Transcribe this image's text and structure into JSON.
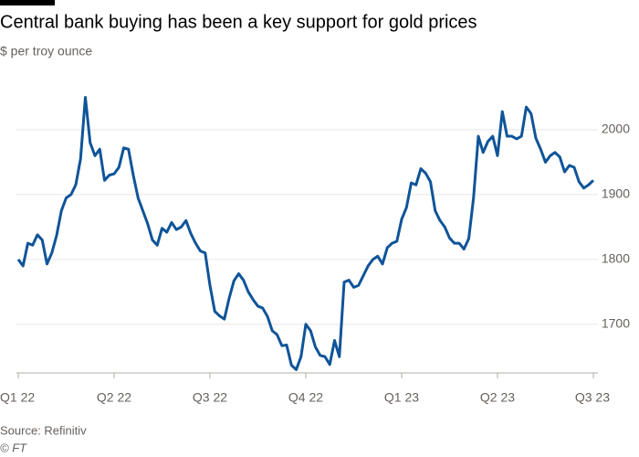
{
  "chart_data": {
    "type": "line",
    "title": "Central bank buying has been a key support for gold prices",
    "subtitle": "$ per troy ounce",
    "source": "Source: Refinitiv",
    "credit": "© FT",
    "xlim": [
      0,
      6.05
    ],
    "xticks": [
      {
        "value": 0,
        "label": "Q1 22"
      },
      {
        "value": 1,
        "label": "Q2 22"
      },
      {
        "value": 2,
        "label": "Q3 22"
      },
      {
        "value": 3,
        "label": "Q4 22"
      },
      {
        "value": 4,
        "label": "Q1 23"
      },
      {
        "value": 5,
        "label": "Q2 23"
      },
      {
        "value": 6,
        "label": "Q3 23"
      }
    ],
    "ylim": [
      1625,
      2060
    ],
    "yticks": [
      1700,
      1800,
      1900,
      2000
    ],
    "grid": true,
    "series": [
      {
        "color": "#0f5499",
        "x": [
          0,
          0.05,
          0.1,
          0.15,
          0.2,
          0.25,
          0.3,
          0.35,
          0.4,
          0.45,
          0.5,
          0.55,
          0.6,
          0.65,
          0.7,
          0.75,
          0.8,
          0.85,
          0.9,
          0.95,
          1,
          1.05,
          1.1,
          1.15,
          1.2,
          1.25,
          1.3,
          1.35,
          1.4,
          1.45,
          1.5,
          1.55,
          1.6,
          1.65,
          1.7,
          1.75,
          1.8,
          1.85,
          1.9,
          1.95,
          2,
          2.05,
          2.1,
          2.15,
          2.2,
          2.25,
          2.3,
          2.35,
          2.4,
          2.45,
          2.5,
          2.55,
          2.6,
          2.65,
          2.7,
          2.75,
          2.8,
          2.85,
          2.9,
          2.95,
          3,
          3.05,
          3.1,
          3.15,
          3.2,
          3.25,
          3.3,
          3.35,
          3.4,
          3.45,
          3.5,
          3.55,
          3.6,
          3.65,
          3.7,
          3.75,
          3.8,
          3.85,
          3.9,
          3.95,
          4,
          4.05,
          4.1,
          4.15,
          4.2,
          4.25,
          4.3,
          4.35,
          4.4,
          4.45,
          4.5,
          4.55,
          4.6,
          4.65,
          4.7,
          4.75,
          4.8,
          4.85,
          4.9,
          4.95,
          5,
          5.05,
          5.1,
          5.15,
          5.2,
          5.25,
          5.3,
          5.35,
          5.4,
          5.45,
          5.5,
          5.55,
          5.6,
          5.65,
          5.7,
          5.75,
          5.8,
          5.85,
          5.9,
          5.95,
          6
        ],
        "values": [
          1800,
          1790,
          1825,
          1822,
          1838,
          1830,
          1793,
          1810,
          1837,
          1875,
          1895,
          1900,
          1915,
          1955,
          2050,
          1980,
          1960,
          1970,
          1922,
          1930,
          1932,
          1942,
          1972,
          1970,
          1930,
          1895,
          1875,
          1855,
          1830,
          1822,
          1848,
          1842,
          1857,
          1846,
          1850,
          1860,
          1840,
          1825,
          1813,
          1810,
          1760,
          1720,
          1713,
          1708,
          1740,
          1767,
          1778,
          1768,
          1750,
          1738,
          1728,
          1725,
          1712,
          1690,
          1684,
          1667,
          1668,
          1637,
          1630,
          1650,
          1700,
          1690,
          1665,
          1652,
          1650,
          1638,
          1675,
          1650,
          1765,
          1768,
          1757,
          1760,
          1775,
          1790,
          1800,
          1805,
          1793,
          1818,
          1825,
          1828,
          1862,
          1880,
          1918,
          1915,
          1940,
          1933,
          1920,
          1875,
          1860,
          1850,
          1833,
          1825,
          1825,
          1816,
          1832,
          1895,
          1990,
          1965,
          1982,
          1990,
          1960,
          2028,
          1990,
          1990,
          1986,
          1990,
          2035,
          2025,
          1987,
          1970,
          1950,
          1960,
          1965,
          1958,
          1935,
          1945,
          1942,
          1920,
          1910,
          1915,
          1922
        ]
      }
    ]
  }
}
